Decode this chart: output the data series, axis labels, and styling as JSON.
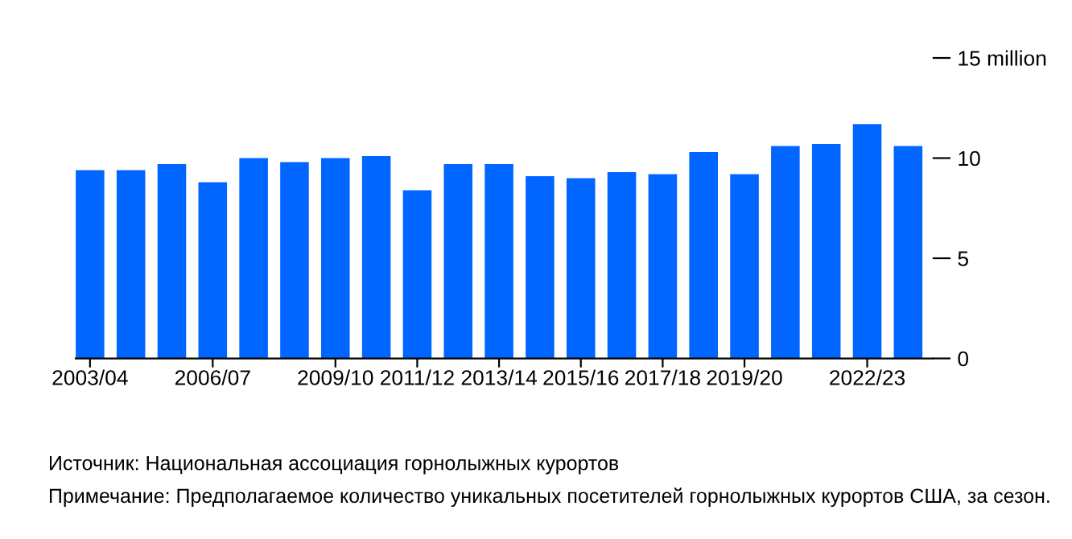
{
  "chart_data": {
    "type": "bar",
    "categories": [
      "2003/04",
      null,
      null,
      "2006/07",
      null,
      null,
      "2009/10",
      null,
      "2011/12",
      null,
      "2013/14",
      null,
      "2015/16",
      null,
      "2017/18",
      null,
      "2019/20",
      null,
      null,
      "2022/23",
      null
    ],
    "values": [
      9.4,
      9.4,
      9.7,
      8.8,
      10.0,
      9.8,
      10.0,
      10.1,
      8.4,
      9.7,
      9.7,
      9.1,
      9.0,
      9.3,
      9.2,
      10.3,
      9.2,
      10.6,
      10.7,
      11.7,
      10.6
    ],
    "color": "#0066ff",
    "ylim": [
      0,
      15
    ],
    "yticks": [
      0,
      5,
      10,
      {
        "value": 15,
        "label": "15 million"
      }
    ],
    "grid": false,
    "annotations": [
      "Источник: Национальная ассоциация горнолыжных курортов",
      "Примечание: Предполагаемое количество уникальных посетителей горнолыжных курортов США, за сезон."
    ]
  }
}
